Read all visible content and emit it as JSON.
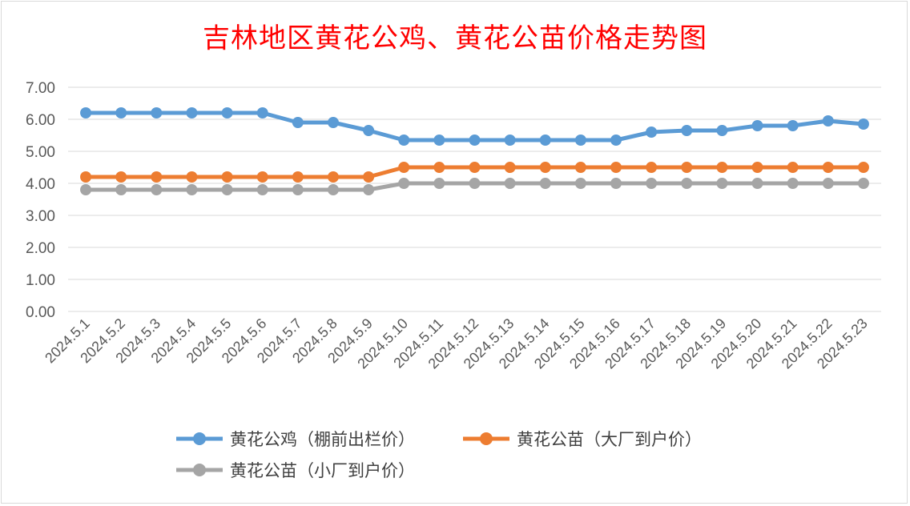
{
  "chart_data": {
    "type": "line",
    "title": "吉林地区黄花公鸡、黄花公苗价格走势图",
    "categories": [
      "2024.5.1",
      "2024.5.2",
      "2024.5.3",
      "2024.5.4",
      "2024.5.5",
      "2024.5.6",
      "2024.5.7",
      "2024.5.8",
      "2024.5.9",
      "2024.5.10",
      "2024.5.11",
      "2024.5.12",
      "2024.5.13",
      "2024.5.14",
      "2024.5.15",
      "2024.5.16",
      "2024.5.17",
      "2024.5.18",
      "2024.5.19",
      "2024.5.20",
      "2024.5.21",
      "2024.5.22",
      "2024.5.23"
    ],
    "series": [
      {
        "name": "黄花公鸡（棚前出栏价）",
        "color": "#5b9bd5",
        "values": [
          6.2,
          6.2,
          6.2,
          6.2,
          6.2,
          6.2,
          5.9,
          5.9,
          5.65,
          5.35,
          5.35,
          5.35,
          5.35,
          5.35,
          5.35,
          5.35,
          5.6,
          5.65,
          5.65,
          5.8,
          5.8,
          5.95,
          5.85
        ]
      },
      {
        "name": "黄花公苗（大厂到户价）",
        "color": "#ed7d31",
        "values": [
          4.2,
          4.2,
          4.2,
          4.2,
          4.2,
          4.2,
          4.2,
          4.2,
          4.2,
          4.5,
          4.5,
          4.5,
          4.5,
          4.5,
          4.5,
          4.5,
          4.5,
          4.5,
          4.5,
          4.5,
          4.5,
          4.5,
          4.5
        ]
      },
      {
        "name": "黄花公苗（小厂到户价）",
        "color": "#a5a5a5",
        "values": [
          3.8,
          3.8,
          3.8,
          3.8,
          3.8,
          3.8,
          3.8,
          3.8,
          3.8,
          4.0,
          4.0,
          4.0,
          4.0,
          4.0,
          4.0,
          4.0,
          4.0,
          4.0,
          4.0,
          4.0,
          4.0,
          4.0,
          4.0
        ]
      }
    ],
    "yticks": [
      "0.00",
      "1.00",
      "2.00",
      "3.00",
      "4.00",
      "5.00",
      "6.00",
      "7.00"
    ],
    "ylim": [
      0,
      7
    ],
    "grid": true,
    "legend_position": "bottom"
  }
}
